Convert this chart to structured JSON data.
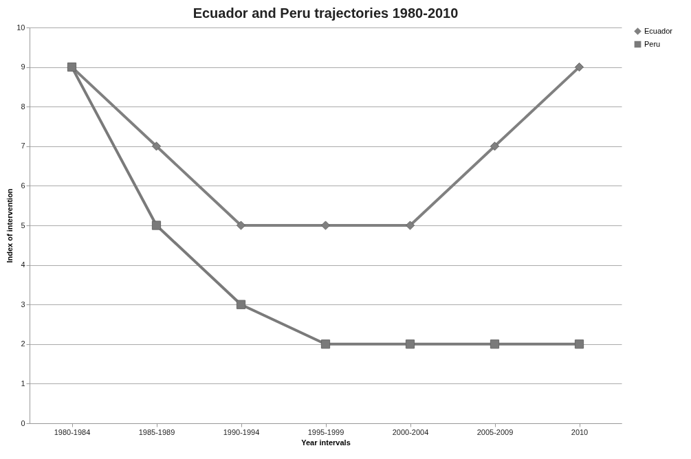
{
  "chart_data": {
    "type": "line",
    "title": "Ecuador and Peru trajectories 1980-2010",
    "xlabel": "Year intervals",
    "ylabel": "Index of intervention",
    "categories": [
      "1980-1984",
      "1985-1989",
      "1990-1994",
      "1995-1999",
      "2000-2004",
      "2005-2009",
      "2010"
    ],
    "series": [
      {
        "name": "Ecuador",
        "color": "#808080",
        "marker": "diamond",
        "values": [
          9,
          7,
          5,
          5,
          5,
          7,
          9
        ]
      },
      {
        "name": "Peru",
        "color": "#7a7a7a",
        "marker": "square",
        "values": [
          9,
          5,
          3,
          2,
          2,
          2,
          2
        ]
      }
    ],
    "ylim": [
      0,
      10
    ],
    "yticks": [
      0,
      1,
      2,
      3,
      4,
      5,
      6,
      7,
      8,
      9,
      10
    ],
    "grid": "y",
    "legend": "right",
    "line_style": "solid"
  }
}
